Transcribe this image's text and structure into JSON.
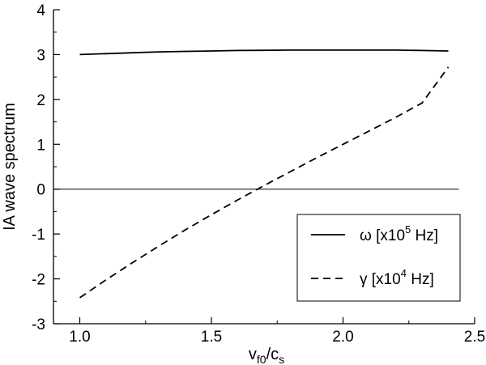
{
  "chart_data": {
    "type": "line",
    "ylabel": "IA wave spectrum",
    "xlabel": {
      "main": "v",
      "sub1": "f0",
      "sep": "/c",
      "sub2": "s"
    },
    "xlim": [
      0.9,
      2.5
    ],
    "ylim": [
      -3,
      4
    ],
    "x_ticks": [
      1.0,
      1.5,
      2.0,
      2.5
    ],
    "x_tick_labels": [
      "1.0",
      "1.5",
      "2.0",
      "2.5"
    ],
    "y_ticks": [
      -3,
      -2,
      -1,
      0,
      1,
      2,
      3,
      4
    ],
    "y_tick_labels": [
      "-3",
      "-2",
      "-1",
      "0",
      "1",
      "2",
      "3",
      "4"
    ],
    "zero_line": 0,
    "grid": false,
    "legend_position": "bottom-right",
    "series": [
      {
        "name": "ω [x10^5 Hz]",
        "legend": {
          "symbol": "ω",
          "pre": " [x10",
          "sup": "5",
          "post": " Hz]"
        },
        "style": "solid",
        "color": "#000000",
        "x": [
          1.0,
          1.1,
          1.2,
          1.3,
          1.4,
          1.5,
          1.6,
          1.7,
          1.8,
          1.9,
          2.0,
          2.1,
          2.2,
          2.3,
          2.4
        ],
        "y": [
          3.0,
          3.02,
          3.04,
          3.06,
          3.07,
          3.08,
          3.09,
          3.095,
          3.1,
          3.1,
          3.1,
          3.1,
          3.1,
          3.09,
          3.08
        ]
      },
      {
        "name": "γ [x10^4 Hz]",
        "legend": {
          "symbol": "γ",
          "pre": " [x10",
          "sup": "4",
          "post": " Hz]"
        },
        "style": "dashed",
        "color": "#000000",
        "x": [
          1.0,
          1.1,
          1.2,
          1.3,
          1.4,
          1.5,
          1.6,
          1.7,
          1.8,
          1.9,
          2.0,
          2.1,
          2.2,
          2.3,
          2.4
        ],
        "y": [
          -2.42,
          -2.02,
          -1.64,
          -1.27,
          -0.91,
          -0.57,
          -0.24,
          0.08,
          0.39,
          0.7,
          1.0,
          1.3,
          1.6,
          1.92,
          2.72
        ]
      }
    ]
  }
}
